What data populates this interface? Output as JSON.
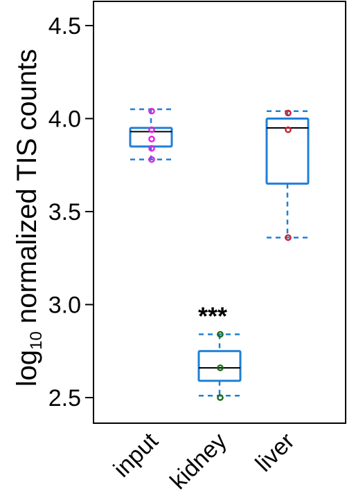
{
  "chart_data": {
    "type": "box",
    "title": "",
    "xlabel": "",
    "ylabel_main": "log",
    "ylabel_sub": "10",
    "ylabel_rest": " normalized TIS counts",
    "ylim": [
      2.35,
      4.6
    ],
    "yticks": [
      "2.5",
      "3.0",
      "3.5",
      "4.0",
      "4.5"
    ],
    "ytick_values": [
      2.5,
      3.0,
      3.5,
      4.0,
      4.5
    ],
    "categories": [
      "input",
      "kidney",
      "liver"
    ],
    "boxes": [
      {
        "category": "input",
        "min": 3.78,
        "q1": 3.85,
        "median": 3.93,
        "q3": 3.95,
        "max": 4.05,
        "points": [
          4.04,
          3.94,
          3.89,
          3.84,
          3.78
        ],
        "point_color": "#e020e0"
      },
      {
        "category": "kidney",
        "min": 2.51,
        "q1": 2.59,
        "median": 2.66,
        "q3": 2.75,
        "max": 2.84,
        "points": [
          2.84,
          2.66,
          2.5
        ],
        "point_color": "#1a6b1a"
      },
      {
        "category": "liver",
        "min": 3.36,
        "q1": 3.65,
        "median": 3.95,
        "q3": 4.0,
        "max": 4.04,
        "points": [
          4.03,
          3.94,
          3.36
        ],
        "point_color": "#cc1f2e"
      }
    ],
    "annotations": [
      {
        "category": "kidney",
        "text": "***"
      }
    ],
    "box_color": "#1e7fd6",
    "grid": false
  }
}
